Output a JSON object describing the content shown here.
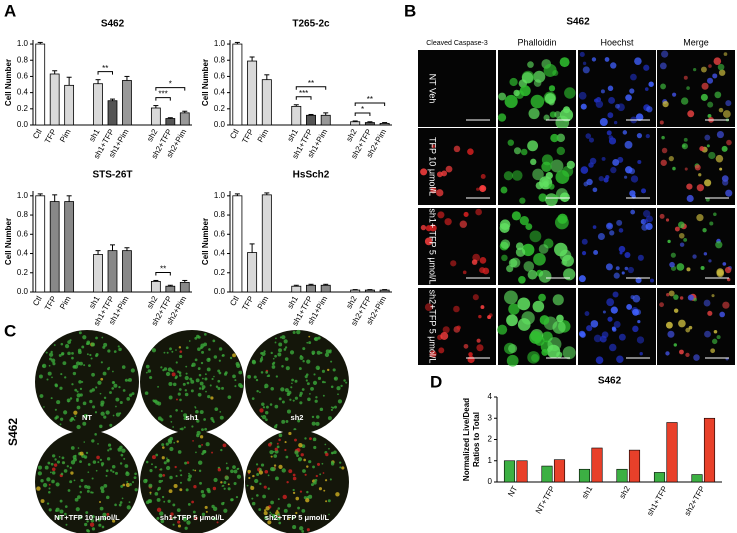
{
  "panel_labels": [
    "A",
    "B",
    "C",
    "D"
  ],
  "chart_data": [
    {
      "type": "bar",
      "title": "S462",
      "ylabel": "Cell Number",
      "categories": [
        "Ctl",
        "TFP",
        "Pim",
        null,
        "sh1",
        "sh1+TFP",
        "sh1+Pim",
        null,
        "sh2",
        "sh2+TFP",
        "sh2+Pim"
      ],
      "values": [
        1.0,
        0.63,
        0.49,
        null,
        0.51,
        0.3,
        0.55,
        null,
        0.21,
        0.08,
        0.15
      ],
      "errors": [
        0.02,
        0.04,
        0.1,
        null,
        0.05,
        0.02,
        0.05,
        null,
        0.03,
        0.01,
        0.02
      ],
      "colors": [
        "#ffffff",
        "#d9d9d9",
        "#d9d9d9",
        null,
        "#d9d9d9",
        "#555555",
        "#999999",
        null,
        "#d9d9d9",
        "#555555",
        "#999999"
      ],
      "ylim": [
        0,
        1.05
      ],
      "yticks": [
        {
          "value": 0,
          "label": "0.0"
        },
        0.2,
        0.4,
        0.6,
        0.8,
        {
          "value": 1,
          "label": "1.0"
        }
      ],
      "annotations": [
        {
          "text": "**",
          "between": [
            "sh1",
            "sh1+TFP"
          ]
        },
        {
          "text": "***",
          "between": [
            "sh2",
            "sh2+TFP"
          ]
        },
        {
          "text": "*",
          "between": [
            "sh2",
            "sh2+Pim"
          ]
        }
      ]
    },
    {
      "type": "bar",
      "title": "T265-2c",
      "ylabel": "Cell Number",
      "categories": [
        "Ctl",
        "TFP",
        "Pim",
        null,
        "sh1",
        "sh1+TFP",
        "sh1+Pim",
        null,
        "sh2",
        "sh2+TFP",
        "sh2+Pim"
      ],
      "values": [
        1.0,
        0.79,
        0.56,
        null,
        0.23,
        0.12,
        0.12,
        null,
        0.04,
        0.03,
        0.02
      ],
      "errors": [
        0.02,
        0.05,
        0.06,
        null,
        0.02,
        0.01,
        0.03,
        null,
        0.01,
        0.01,
        0.01
      ],
      "colors": [
        "#ffffff",
        "#d9d9d9",
        "#d9d9d9",
        null,
        "#d9d9d9",
        "#555555",
        "#999999",
        null,
        "#d9d9d9",
        "#555555",
        "#999999"
      ],
      "ylim": [
        0,
        1.05
      ],
      "yticks": [
        {
          "value": 0,
          "label": "0.0"
        },
        0.2,
        0.4,
        0.6,
        0.8,
        {
          "value": 1,
          "label": "1.0"
        }
      ],
      "annotations": [
        {
          "text": "***",
          "between": [
            "sh1",
            "sh1+TFP"
          ]
        },
        {
          "text": "**",
          "between": [
            "sh1",
            "sh1+Pim"
          ]
        },
        {
          "text": "*",
          "between": [
            "sh2",
            "sh2+TFP"
          ]
        },
        {
          "text": "**",
          "between": [
            "sh2",
            "sh2+Pim"
          ]
        }
      ]
    },
    {
      "type": "bar",
      "title": "STS-26T",
      "ylabel": "Cell Number",
      "categories": [
        "Ctl",
        "TFP",
        "Pim",
        null,
        "sh1",
        "sh1+TFP",
        "sh1+Pim",
        null,
        "sh2",
        "sh2+TFP",
        "sh2+Pim"
      ],
      "values": [
        1.0,
        0.94,
        0.94,
        null,
        0.39,
        0.43,
        0.43,
        null,
        0.11,
        0.06,
        0.1
      ],
      "errors": [
        0.02,
        0.07,
        0.06,
        null,
        0.04,
        0.06,
        0.03,
        null,
        0.01,
        0.01,
        0.02
      ],
      "colors": [
        "#ffffff",
        "#888888",
        "#888888",
        null,
        "#d9d9d9",
        "#888888",
        "#888888",
        null,
        "#d9d9d9",
        "#888888",
        "#888888"
      ],
      "ylim": [
        0,
        1.05
      ],
      "yticks": [
        {
          "value": 0,
          "label": "0.0"
        },
        0.2,
        0.4,
        0.6,
        0.8,
        {
          "value": 1,
          "label": "1.0"
        }
      ],
      "annotations": [
        {
          "text": "**",
          "between": [
            "sh2",
            "sh2+TFP"
          ]
        }
      ]
    },
    {
      "type": "bar",
      "title": "HsSch2",
      "ylabel": "Cell Number",
      "categories": [
        "Ctl",
        "TFP",
        "Pim",
        null,
        "sh1",
        "sh1+TFP",
        "sh1+Pim",
        null,
        "sh2",
        "sh2+TFP",
        "sh2+Pim"
      ],
      "values": [
        1.0,
        0.41,
        1.01,
        null,
        0.06,
        0.07,
        0.07,
        null,
        0.02,
        0.02,
        0.02
      ],
      "errors": [
        0.02,
        0.09,
        0.02,
        null,
        0.01,
        0.01,
        0.01,
        null,
        0.005,
        0.005,
        0.005
      ],
      "colors": [
        "#ffffff",
        "#d9d9d9",
        "#d9d9d9",
        null,
        "#d9d9d9",
        "#888888",
        "#888888",
        null,
        "#d9d9d9",
        "#888888",
        "#888888"
      ],
      "ylim": [
        0,
        1.05
      ],
      "yticks": [
        {
          "value": 0,
          "label": "0.0"
        },
        0.2,
        0.4,
        0.6,
        0.8,
        {
          "value": 1,
          "label": "1.0"
        }
      ],
      "annotations": []
    },
    {
      "type": "grouped_bar",
      "title": "S462",
      "ylabel": [
        "Normalized Live/Dead",
        "Ratios to Total"
      ],
      "categories": [
        "NT",
        "NT+TFP",
        "sh1",
        "sh2",
        "sh1+TFP",
        "sh2+TFP"
      ],
      "series": [
        {
          "color": "#3cb043",
          "values": [
            1.0,
            0.75,
            0.6,
            0.6,
            0.45,
            0.35
          ]
        },
        {
          "color": "#e8402a",
          "values": [
            1.0,
            1.05,
            1.6,
            1.5,
            2.8,
            3.0
          ]
        }
      ],
      "ylim": [
        0,
        4
      ],
      "yticks": [
        0,
        1,
        2,
        3,
        4
      ]
    }
  ],
  "microscopy": {
    "title": "S462",
    "columns": [
      "Cleaved Caspase-3",
      "Phalloidin",
      "Hoechst",
      "Merge"
    ],
    "rows": [
      "NT Veh",
      "TFP 10 μmol/L",
      "sh1+ TFP 5 μmol/L",
      "sh2+TFP 5 μmol/L"
    ]
  },
  "live_dead": {
    "side_label": "S462",
    "labels": [
      "NT",
      "sh1",
      "sh2",
      "NT+TFP 10 μmol/L",
      "sh1+TFP 5 μmol/L",
      "sh2+TFP 5 μmol/L"
    ]
  }
}
